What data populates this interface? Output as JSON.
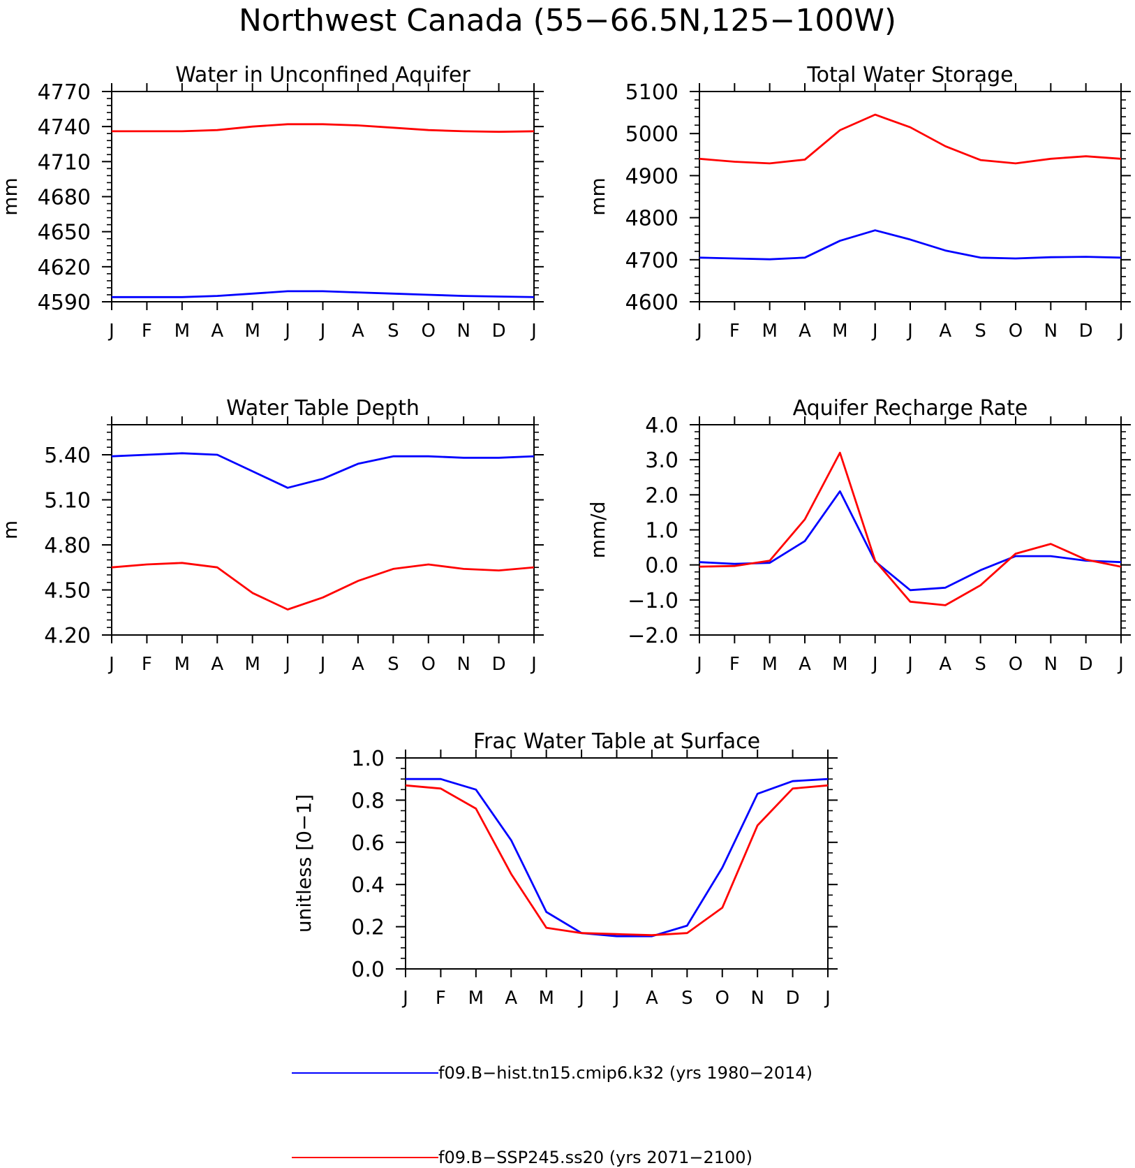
{
  "figure_title": "Northwest Canada (55−66.5N,125−100W)",
  "colors": {
    "hist": "#0000ff",
    "future": "#ff0000"
  },
  "legend": [
    {
      "label": "f09.B−hist.tn15.cmip6.k32 (yrs 1980−2014)",
      "color": "#0000ff"
    },
    {
      "label": "f09.B−SSP245.ss20 (yrs 2071−2100)",
      "color": "#ff0000"
    }
  ],
  "chart_data": [
    {
      "type": "line",
      "title": "Water in Unconfined Aquifer",
      "ylabel": "mm",
      "xlabel": "",
      "categories": [
        "J",
        "F",
        "M",
        "A",
        "M",
        "J",
        "J",
        "A",
        "S",
        "O",
        "N",
        "D",
        "J"
      ],
      "ylim": [
        4590,
        4770
      ],
      "yticks": [
        4590,
        4620,
        4650,
        4680,
        4710,
        4740,
        4770
      ],
      "yminor": 5,
      "decimals": 0,
      "series": [
        {
          "key": "hist",
          "values": [
            4594,
            4594,
            4594,
            4595,
            4597,
            4599,
            4599,
            4598,
            4597,
            4596,
            4595,
            4594.5,
            4594
          ]
        },
        {
          "key": "future",
          "values": [
            4736,
            4736,
            4736,
            4737,
            4740,
            4742,
            4742,
            4741,
            4739,
            4737,
            4736,
            4735.5,
            4736
          ]
        }
      ]
    },
    {
      "type": "line",
      "title": "Total Water Storage",
      "ylabel": "mm",
      "xlabel": "",
      "categories": [
        "J",
        "F",
        "M",
        "A",
        "M",
        "J",
        "J",
        "A",
        "S",
        "O",
        "N",
        "D",
        "J"
      ],
      "ylim": [
        4600,
        5100
      ],
      "yticks": [
        4600,
        4700,
        4800,
        4900,
        5000,
        5100
      ],
      "yminor": 5,
      "decimals": 0,
      "series": [
        {
          "key": "hist",
          "values": [
            4705,
            4703,
            4701,
            4705,
            4745,
            4770,
            4748,
            4722,
            4705,
            4703,
            4706,
            4707,
            4705
          ]
        },
        {
          "key": "future",
          "values": [
            4940,
            4933,
            4929,
            4938,
            5008,
            5045,
            5015,
            4970,
            4937,
            4929,
            4940,
            4946,
            4940
          ]
        }
      ]
    },
    {
      "type": "line",
      "title": "Water Table Depth",
      "ylabel": "m",
      "xlabel": "",
      "categories": [
        "J",
        "F",
        "M",
        "A",
        "M",
        "J",
        "J",
        "A",
        "S",
        "O",
        "N",
        "D",
        "J"
      ],
      "ylim": [
        4.2,
        5.6
      ],
      "yticks": [
        4.2,
        4.5,
        4.8,
        5.1,
        5.4
      ],
      "ytick_top": 5.6,
      "yminor": 6,
      "decimals": 2,
      "series": [
        {
          "key": "hist",
          "values": [
            5.39,
            5.4,
            5.41,
            5.4,
            5.29,
            5.18,
            5.24,
            5.34,
            5.39,
            5.39,
            5.38,
            5.38,
            5.39
          ]
        },
        {
          "key": "future",
          "values": [
            4.65,
            4.67,
            4.68,
            4.65,
            4.48,
            4.37,
            4.45,
            4.56,
            4.64,
            4.67,
            4.64,
            4.63,
            4.65
          ]
        }
      ]
    },
    {
      "type": "line",
      "title": "Aquifer Recharge Rate",
      "ylabel": "mm/d",
      "xlabel": "",
      "categories": [
        "J",
        "F",
        "M",
        "A",
        "M",
        "J",
        "J",
        "A",
        "S",
        "O",
        "N",
        "D",
        "J"
      ],
      "ylim": [
        -2.0,
        4.0
      ],
      "yticks": [
        -2.0,
        -1.0,
        0.0,
        1.0,
        2.0,
        3.0,
        4.0
      ],
      "yminor": 5,
      "decimals": 1,
      "series": [
        {
          "key": "hist",
          "values": [
            0.08,
            0.03,
            0.06,
            0.68,
            2.1,
            0.1,
            -0.72,
            -0.65,
            -0.15,
            0.25,
            0.25,
            0.12,
            0.08
          ]
        },
        {
          "key": "future",
          "values": [
            -0.05,
            -0.03,
            0.12,
            1.3,
            3.2,
            0.12,
            -1.05,
            -1.15,
            -0.58,
            0.32,
            0.6,
            0.15,
            -0.05
          ]
        }
      ]
    },
    {
      "type": "line",
      "title": "Frac Water Table at Surface",
      "ylabel": "unitless [0−1]",
      "xlabel": "",
      "categories": [
        "J",
        "F",
        "M",
        "A",
        "M",
        "J",
        "J",
        "A",
        "S",
        "O",
        "N",
        "D",
        "J"
      ],
      "ylim": [
        0.0,
        1.0
      ],
      "yticks": [
        0.0,
        0.2,
        0.4,
        0.6,
        0.8,
        1.0
      ],
      "yminor": 4,
      "decimals": 1,
      "series": [
        {
          "key": "hist",
          "values": [
            0.9,
            0.9,
            0.85,
            0.61,
            0.27,
            0.17,
            0.155,
            0.155,
            0.205,
            0.48,
            0.83,
            0.89,
            0.9
          ]
        },
        {
          "key": "future",
          "values": [
            0.87,
            0.855,
            0.76,
            0.45,
            0.195,
            0.17,
            0.165,
            0.16,
            0.17,
            0.29,
            0.68,
            0.855,
            0.87
          ]
        }
      ]
    }
  ]
}
